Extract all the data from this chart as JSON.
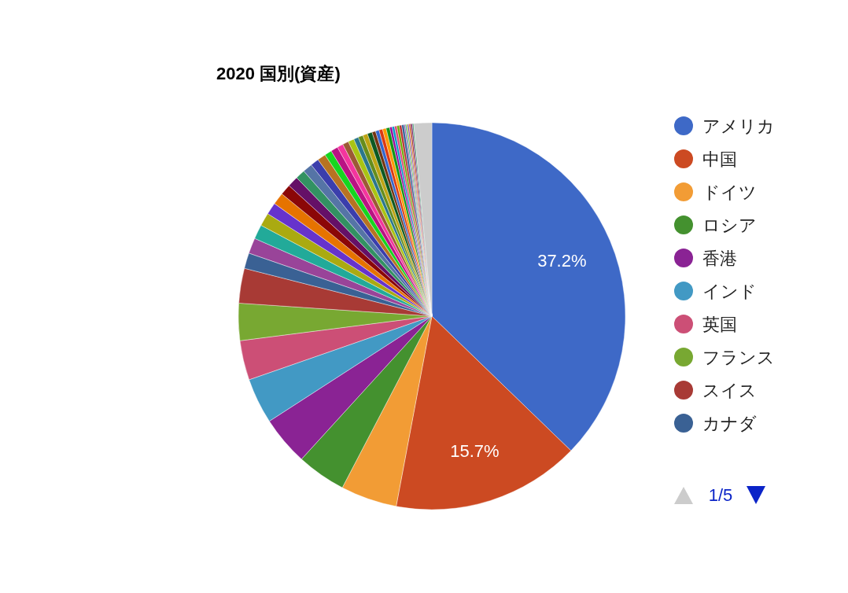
{
  "chart_data": {
    "type": "pie",
    "title": "2020 国別(資産)",
    "categories": [
      "アメリカ",
      "中国",
      "ドイツ",
      "ロシア",
      "香港",
      "インド",
      "英国",
      "フランス",
      "スイス",
      "カナダ",
      null,
      null,
      null,
      null,
      null,
      null,
      null,
      null,
      null,
      null,
      null,
      null,
      null,
      null,
      null,
      null,
      null,
      null,
      null,
      null,
      null,
      null,
      null,
      null,
      null,
      null,
      null,
      null,
      null,
      null,
      null,
      null,
      null,
      null,
      null,
      null,
      null,
      null,
      null,
      null
    ],
    "values": [
      37.2,
      15.7,
      4.7,
      4.1,
      4.1,
      3.8,
      3.3,
      3.1,
      2.9,
      1.3,
      1.3,
      1.2,
      1.1,
      1.0,
      1.0,
      0.9,
      0.9,
      0.8,
      0.8,
      0.7,
      0.7,
      0.6,
      0.6,
      0.5,
      0.5,
      0.5,
      0.4,
      0.4,
      0.4,
      0.4,
      0.3,
      0.3,
      0.3,
      0.3,
      0.3,
      0.2,
      0.2,
      0.2,
      0.2,
      0.2,
      0.2,
      0.1,
      0.1,
      0.1,
      0.1,
      0.1,
      0.1,
      0.1,
      0.1,
      1.5
    ],
    "colors": [
      "#3e69c7",
      "#cc4a22",
      "#f29c35",
      "#44912f",
      "#8a2394",
      "#4299c4",
      "#cc4f76",
      "#78a832",
      "#a83a35",
      "#3a6194",
      "#994499",
      "#22aa99",
      "#aaaa11",
      "#6633cc",
      "#e67300",
      "#8b0707",
      "#651067",
      "#329262",
      "#5574a6",
      "#3b3eac",
      "#b77322",
      "#16d620",
      "#b91383",
      "#f4359e",
      "#9c5935",
      "#a9c413",
      "#2a778d",
      "#668d1c",
      "#bea413",
      "#0c5922",
      "#743411",
      "#3366cc",
      "#dc3912",
      "#ff9900",
      "#109618",
      "#990099",
      "#0099c6",
      "#dd4477",
      "#66aa00",
      "#b82e2e",
      "#316395",
      "#994499",
      "#22aa99",
      "#aaaa11",
      "#6633cc",
      "#e67300",
      "#8b0707",
      "#651067",
      "#329262",
      "#cccccc"
    ],
    "value_labels": [
      "37.2%",
      "15.7%",
      null,
      null,
      null,
      null,
      null,
      null,
      null,
      null,
      null,
      null,
      null,
      null,
      null,
      null,
      null,
      null,
      null,
      null,
      null,
      null,
      null,
      null,
      null,
      null,
      null,
      null,
      null,
      null,
      null,
      null,
      null,
      null,
      null,
      null,
      null,
      null,
      null,
      null,
      null,
      null,
      null,
      null,
      null,
      null,
      null,
      null,
      null,
      null
    ],
    "legend": "right",
    "annotations": [
      "1/5"
    ]
  }
}
